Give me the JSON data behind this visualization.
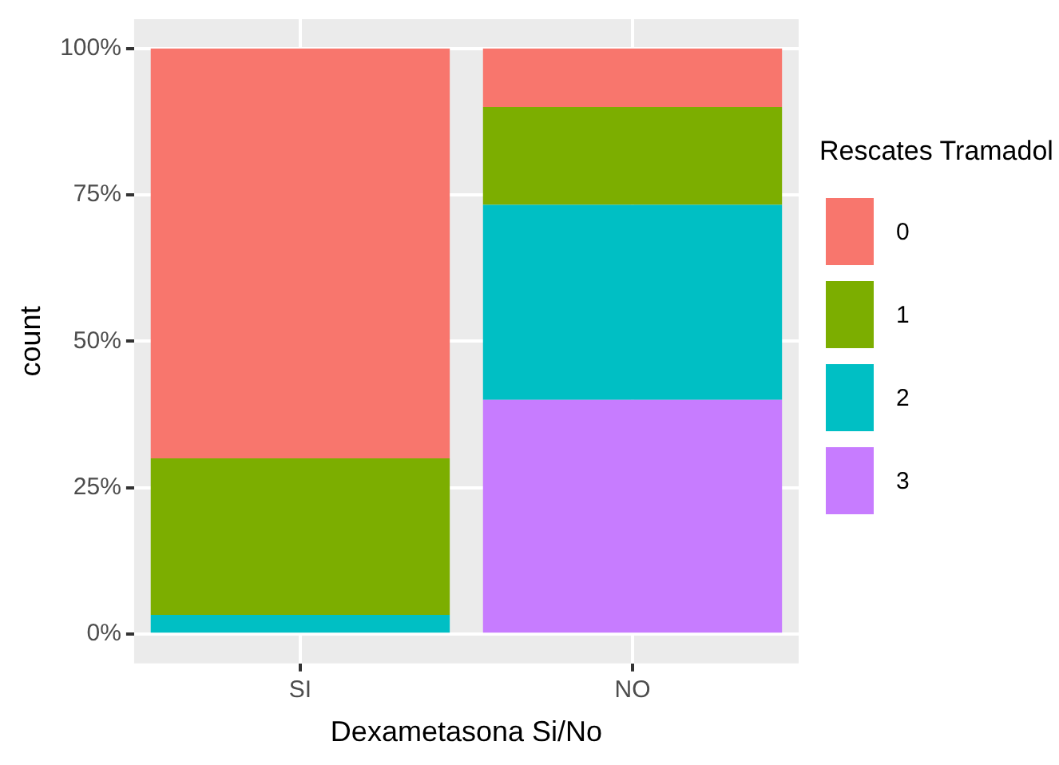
{
  "chart_data": {
    "type": "bar",
    "stacked": true,
    "xlabel": "Dexametasona Si/No",
    "ylabel": "count",
    "legend_title": "Rescates Tramadol",
    "legend": "right",
    "grid": true,
    "categories": [
      "SI",
      "NO"
    ],
    "series": [
      {
        "name": "3",
        "color": "#c77cff",
        "values": [
          0,
          40
        ]
      },
      {
        "name": "2",
        "color": "#00bfc4",
        "values": [
          3.3,
          33.3
        ]
      },
      {
        "name": "1",
        "color": "#7cae00",
        "values": [
          26.7,
          16.7
        ]
      },
      {
        "name": "0",
        "color": "#f8766d",
        "values": [
          70,
          10
        ]
      }
    ],
    "ylim": [
      -5,
      105
    ],
    "yticks": [
      {
        "value": 0,
        "label": "0%"
      },
      {
        "value": 25,
        "label": "25%"
      },
      {
        "value": 50,
        "label": "50%"
      },
      {
        "value": 75,
        "label": "75%"
      },
      {
        "value": 100,
        "label": "100%"
      }
    ]
  }
}
